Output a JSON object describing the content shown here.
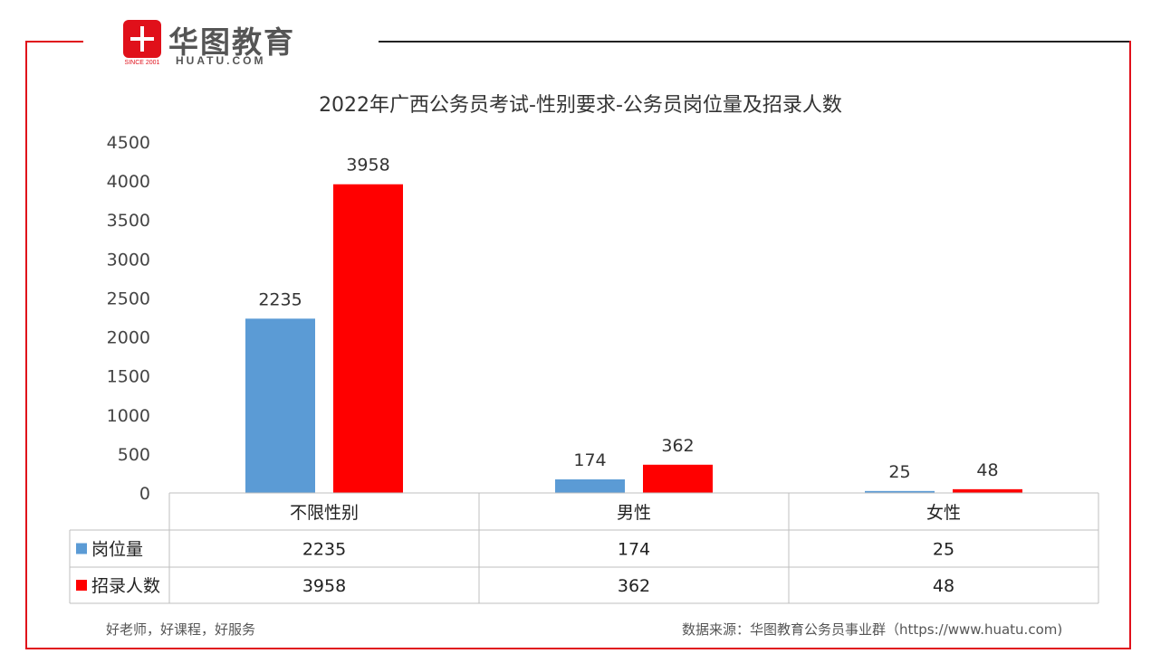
{
  "logo": {
    "cn": "华图教育",
    "en": "HUATU.COM",
    "since": "SINCE 2001"
  },
  "footer": {
    "left": "好老师，好课程，好服务",
    "right": "数据来源：华图教育公务员事业群（https://www.huatu.com)"
  },
  "colors": {
    "frame": "#e0101a",
    "series1": "#5b9bd5",
    "series2": "#ff0000"
  },
  "chart_data": {
    "type": "bar",
    "title": "2022年广西公务员考试-性别要求-公务员岗位量及招录人数",
    "categories": [
      "不限性别",
      "男性",
      "女性"
    ],
    "series": [
      {
        "name": "岗位量",
        "values": [
          2235,
          174,
          25
        ],
        "color": "#5b9bd5"
      },
      {
        "name": "招录人数",
        "values": [
          3958,
          362,
          48
        ],
        "color": "#ff0000"
      }
    ],
    "ylim": [
      0,
      4500
    ],
    "yticks": [
      "0",
      "500",
      "1000",
      "1500",
      "2000",
      "2500",
      "3000",
      "3500",
      "4000",
      "4500"
    ],
    "grid": false,
    "legend": "data-table"
  }
}
